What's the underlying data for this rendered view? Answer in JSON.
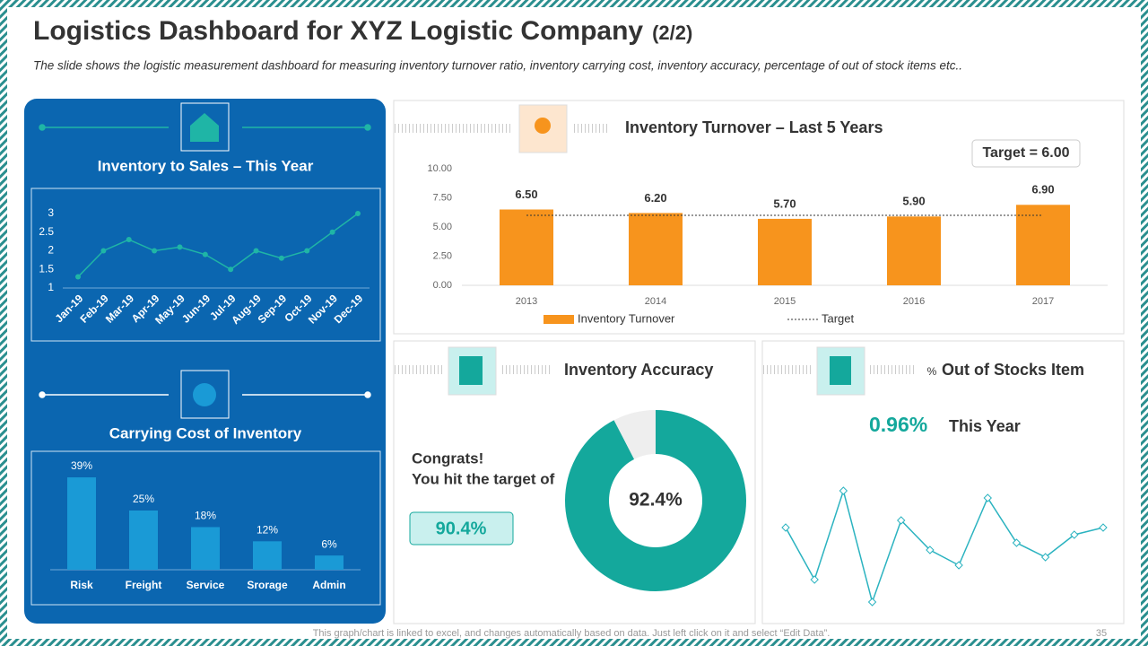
{
  "header": {
    "title": "Logistics Dashboard for XYZ Logistic Company",
    "title_suffix": "(2/2)",
    "subtitle": "The slide shows the logistic measurement dashboard  for measuring inventory turnover ratio, inventory carrying cost, inventory accuracy, percentage of out of stock items etc.."
  },
  "chart_data": [
    {
      "type": "line",
      "title": "Inventory to Sales – This Year",
      "categories": [
        "Jan-19",
        "Feb-19",
        "Mar-19",
        "Apr-19",
        "May-19",
        "Jun-19",
        "Jul-19",
        "Aug-19",
        "Sep-19",
        "Oct-19",
        "Nov-19",
        "Dec-19"
      ],
      "values": [
        1.3,
        2,
        2.3,
        2,
        2.1,
        1.9,
        1.5,
        2,
        1.8,
        2,
        2.5,
        3
      ],
      "ylim": [
        1,
        3
      ],
      "yticks": [
        1,
        1.5,
        2,
        2.5,
        3
      ],
      "color": "#1fb5a6"
    },
    {
      "type": "bar",
      "title": "Carrying Cost of Inventory",
      "categories": [
        "Risk",
        "Freight",
        "Service",
        "Srorage",
        "Admin"
      ],
      "values": [
        39,
        25,
        18,
        12,
        6
      ],
      "value_labels": [
        "39%",
        "25%",
        "18%",
        "12%",
        "6%"
      ],
      "color": "#1a9ad6"
    },
    {
      "type": "bar",
      "title": "Inventory Turnover – Last 5 Years",
      "categories": [
        "2013",
        "2014",
        "2015",
        "2016",
        "2017"
      ],
      "series": [
        {
          "name": "Inventory Turnover",
          "color": "#f7941d",
          "values": [
            6.5,
            6.2,
            5.7,
            5.9,
            6.9
          ],
          "value_labels": [
            "6.50",
            "6.20",
            "5.70",
            "5.90",
            "6.90"
          ]
        },
        {
          "name": "Target",
          "type": "line",
          "color": "#333333",
          "values": [
            6,
            6,
            6,
            6,
            6
          ]
        }
      ],
      "ylim": [
        0,
        10
      ],
      "yticks": [
        {
          "value": 0,
          "label": "0.00"
        },
        {
          "value": 2.5,
          "label": "2.50"
        },
        {
          "value": 5,
          "label": "5.00"
        },
        {
          "value": 7.5,
          "label": "7.50"
        },
        {
          "value": 10,
          "label": "10.00"
        }
      ],
      "annotation": "Target = 6.00",
      "legend": "bottom"
    },
    {
      "type": "donut",
      "title": "Inventory Accuracy",
      "values": [
        92.4,
        7.6
      ],
      "colors": [
        "#14a89c",
        "#eeeeee"
      ],
      "center_label": "92.4%",
      "annotation": "Congrats!",
      "annotation_2": "You hit the target of",
      "target": {
        "value": 90.4,
        "label": "90.4%"
      }
    },
    {
      "type": "line",
      "title": "Out of Stocks Item",
      "title_prefix": "%",
      "highlight": {
        "value": 0.96,
        "label": "0.96%"
      },
      "highlight_text": "This Year",
      "values": [
        11.2,
        5.4,
        15.3,
        2.9,
        12,
        8.7,
        7,
        14.5,
        9.5,
        7.9,
        10.4,
        11.2
      ],
      "color": "#2bb3c0"
    }
  ],
  "footer": {
    "note": "This graph/chart is linked to excel, and changes automatically based on data. Just left click on it and select “Edit Data”.",
    "page": "35"
  }
}
